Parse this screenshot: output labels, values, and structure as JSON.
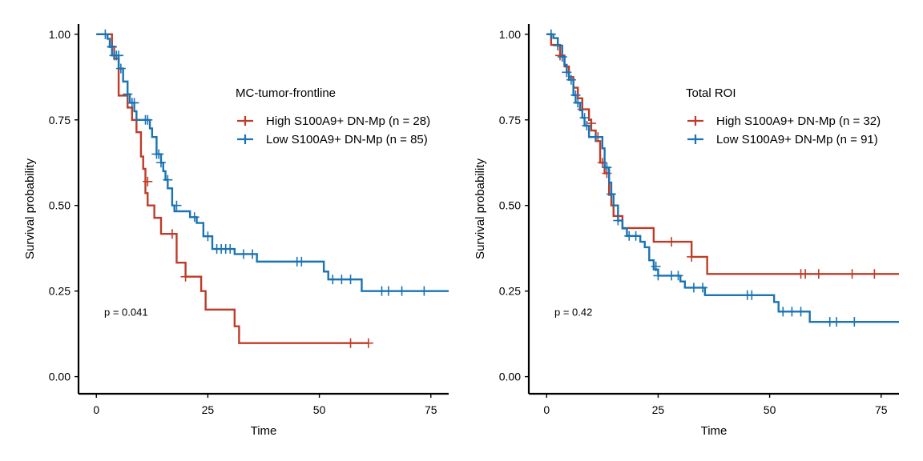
{
  "chart_data": [
    {
      "type": "line",
      "subtype": "kaplan-meier",
      "title": "",
      "legend_title": "MC-tumor-frontline",
      "legend_position": "top-right",
      "xlabel": "Time",
      "ylabel": "Survival probability",
      "xlim": [
        -4,
        79
      ],
      "ylim": [
        -0.05,
        1.03
      ],
      "xticks": [
        0,
        25,
        50,
        75
      ],
      "yticks": [
        0.0,
        0.25,
        0.5,
        0.75,
        1.0
      ],
      "xtick_labels": [
        "0",
        "25",
        "50",
        "75"
      ],
      "ytick_labels": [
        "0.00",
        "0.25",
        "0.50",
        "0.75",
        "1.00"
      ],
      "grid": false,
      "annotation": "p = 0.041",
      "series": [
        {
          "name": "High S100A9+ DN-Mp (n = 28)",
          "color": "#bf3b28",
          "steps": [
            [
              0,
              1.0
            ],
            [
              3.5,
              0.964
            ],
            [
              4,
              0.929
            ],
            [
              5,
              0.821
            ],
            [
              7,
              0.786
            ],
            [
              8,
              0.75
            ],
            [
              9,
              0.714
            ],
            [
              10,
              0.643
            ],
            [
              10.5,
              0.607
            ],
            [
              11,
              0.536
            ],
            [
              11.5,
              0.5
            ],
            [
              13,
              0.464
            ],
            [
              14.5,
              0.417
            ],
            [
              18,
              0.333
            ],
            [
              20,
              0.292
            ],
            [
              23.5,
              0.25
            ],
            [
              24.5,
              0.196
            ],
            [
              31,
              0.147
            ],
            [
              32,
              0.098
            ],
            [
              61,
              0.098
            ]
          ],
          "censors": [
            [
              3.5,
              0.964
            ],
            [
              11.5,
              0.57
            ],
            [
              17,
              0.417
            ],
            [
              20,
              0.292
            ],
            [
              57,
              0.098
            ],
            [
              61,
              0.098
            ]
          ]
        },
        {
          "name": "Low S100A9+ DN-Mp (n = 85)",
          "color": "#1a73b3",
          "steps": [
            [
              0,
              1.0
            ],
            [
              2.5,
              0.987
            ],
            [
              3,
              0.963
            ],
            [
              3.5,
              0.938
            ],
            [
              5,
              0.9
            ],
            [
              6,
              0.862
            ],
            [
              7,
              0.825
            ],
            [
              7.5,
              0.8
            ],
            [
              8.5,
              0.775
            ],
            [
              9,
              0.75
            ],
            [
              12,
              0.725
            ],
            [
              12.5,
              0.7
            ],
            [
              13.5,
              0.65
            ],
            [
              14.5,
              0.625
            ],
            [
              15,
              0.6
            ],
            [
              15.5,
              0.575
            ],
            [
              16,
              0.55
            ],
            [
              17,
              0.5
            ],
            [
              17.5,
              0.483
            ],
            [
              21,
              0.466
            ],
            [
              22.5,
              0.449
            ],
            [
              24,
              0.41
            ],
            [
              26,
              0.373
            ],
            [
              30,
              0.373
            ],
            [
              31,
              0.358
            ],
            [
              35,
              0.358
            ],
            [
              36,
              0.336
            ],
            [
              50,
              0.336
            ],
            [
              51,
              0.307
            ],
            [
              52,
              0.284
            ],
            [
              59,
              0.284
            ],
            [
              59.5,
              0.25
            ],
            [
              79,
              0.25
            ]
          ],
          "censors": [
            [
              2,
              1.0
            ],
            [
              3.5,
              0.963
            ],
            [
              4,
              0.938
            ],
            [
              4.5,
              0.938
            ],
            [
              5,
              0.938
            ],
            [
              5.5,
              0.9
            ],
            [
              7,
              0.825
            ],
            [
              8,
              0.8
            ],
            [
              8.5,
              0.8
            ],
            [
              11,
              0.75
            ],
            [
              11.5,
              0.75
            ],
            [
              13.5,
              0.65
            ],
            [
              14,
              0.65
            ],
            [
              14.5,
              0.625
            ],
            [
              16,
              0.575
            ],
            [
              18,
              0.5
            ],
            [
              22,
              0.466
            ],
            [
              25,
              0.41
            ],
            [
              27,
              0.373
            ],
            [
              28,
              0.373
            ],
            [
              29,
              0.373
            ],
            [
              30,
              0.373
            ],
            [
              33,
              0.358
            ],
            [
              35,
              0.358
            ],
            [
              45,
              0.336
            ],
            [
              46,
              0.336
            ],
            [
              53,
              0.284
            ],
            [
              55,
              0.284
            ],
            [
              57,
              0.284
            ],
            [
              64,
              0.25
            ],
            [
              65.5,
              0.25
            ],
            [
              68.5,
              0.25
            ],
            [
              73.5,
              0.25
            ]
          ]
        }
      ]
    },
    {
      "type": "line",
      "subtype": "kaplan-meier",
      "title": "",
      "legend_title": "Total ROI",
      "legend_position": "top-right",
      "xlabel": "Time",
      "ylabel": "Survival probability",
      "xlim": [
        -4,
        79
      ],
      "ylim": [
        -0.05,
        1.03
      ],
      "xticks": [
        0,
        25,
        50,
        75
      ],
      "yticks": [
        0.0,
        0.25,
        0.5,
        0.75,
        1.0
      ],
      "xtick_labels": [
        "0",
        "25",
        "50",
        "75"
      ],
      "ytick_labels": [
        "0.00",
        "0.25",
        "0.50",
        "0.75",
        "1.00"
      ],
      "grid": false,
      "annotation": "p = 0.42",
      "series": [
        {
          "name": "High S100A9+ DN-Mp (n = 32)",
          "color": "#bf3b28",
          "steps": [
            [
              0,
              1.0
            ],
            [
              1,
              0.969
            ],
            [
              3,
              0.938
            ],
            [
              4,
              0.906
            ],
            [
              5,
              0.875
            ],
            [
              6,
              0.844
            ],
            [
              7,
              0.813
            ],
            [
              8,
              0.781
            ],
            [
              9.5,
              0.75
            ],
            [
              10,
              0.719
            ],
            [
              11,
              0.688
            ],
            [
              12,
              0.625
            ],
            [
              13,
              0.594
            ],
            [
              14,
              0.531
            ],
            [
              14.5,
              0.5
            ],
            [
              15,
              0.469
            ],
            [
              17,
              0.434
            ],
            [
              23,
              0.434
            ],
            [
              24,
              0.394
            ],
            [
              32,
              0.394
            ],
            [
              32.5,
              0.35
            ],
            [
              35,
              0.35
            ],
            [
              36,
              0.3
            ],
            [
              79,
              0.3
            ]
          ],
          "censors": [
            [
              3,
              0.938
            ],
            [
              8,
              0.781
            ],
            [
              10,
              0.74
            ],
            [
              11.5,
              0.7
            ],
            [
              12.5,
              0.625
            ],
            [
              13.5,
              0.594
            ],
            [
              28,
              0.394
            ],
            [
              32.5,
              0.35
            ],
            [
              57,
              0.3
            ],
            [
              58,
              0.3
            ],
            [
              61,
              0.3
            ],
            [
              68.5,
              0.3
            ],
            [
              73.5,
              0.3
            ]
          ]
        },
        {
          "name": "Low S100A9+ DN-Mp (n = 91)",
          "color": "#1a73b3",
          "steps": [
            [
              0,
              1.0
            ],
            [
              1.5,
              0.989
            ],
            [
              2.5,
              0.967
            ],
            [
              3.5,
              0.934
            ],
            [
              4,
              0.911
            ],
            [
              4.5,
              0.889
            ],
            [
              5,
              0.867
            ],
            [
              6,
              0.822
            ],
            [
              6.5,
              0.8
            ],
            [
              7.5,
              0.778
            ],
            [
              8,
              0.756
            ],
            [
              8.5,
              0.733
            ],
            [
              9.5,
              0.7
            ],
            [
              12,
              0.7
            ],
            [
              12.5,
              0.667
            ],
            [
              13,
              0.611
            ],
            [
              14,
              0.567
            ],
            [
              14.5,
              0.533
            ],
            [
              15,
              0.5
            ],
            [
              16,
              0.456
            ],
            [
              17,
              0.433
            ],
            [
              18,
              0.411
            ],
            [
              21,
              0.394
            ],
            [
              22,
              0.378
            ],
            [
              23,
              0.34
            ],
            [
              24,
              0.313
            ],
            [
              25,
              0.295
            ],
            [
              30,
              0.278
            ],
            [
              31,
              0.26
            ],
            [
              35,
              0.26
            ],
            [
              35.5,
              0.238
            ],
            [
              50,
              0.238
            ],
            [
              51,
              0.218
            ],
            [
              52,
              0.19
            ],
            [
              58,
              0.19
            ],
            [
              59,
              0.16
            ],
            [
              79,
              0.16
            ]
          ],
          "censors": [
            [
              1,
              1.0
            ],
            [
              2.5,
              0.967
            ],
            [
              3.5,
              0.934
            ],
            [
              4.5,
              0.889
            ],
            [
              5.5,
              0.867
            ],
            [
              6.5,
              0.822
            ],
            [
              7,
              0.8
            ],
            [
              8.5,
              0.756
            ],
            [
              9,
              0.733
            ],
            [
              11,
              0.7
            ],
            [
              13.5,
              0.611
            ],
            [
              14.5,
              0.533
            ],
            [
              16,
              0.456
            ],
            [
              18.5,
              0.411
            ],
            [
              20,
              0.411
            ],
            [
              24.5,
              0.322
            ],
            [
              25,
              0.295
            ],
            [
              28,
              0.295
            ],
            [
              29.5,
              0.295
            ],
            [
              33,
              0.26
            ],
            [
              35,
              0.26
            ],
            [
              45,
              0.238
            ],
            [
              46,
              0.238
            ],
            [
              53,
              0.19
            ],
            [
              55,
              0.19
            ],
            [
              57,
              0.19
            ],
            [
              63.5,
              0.16
            ],
            [
              65,
              0.16
            ],
            [
              69,
              0.16
            ]
          ]
        }
      ]
    }
  ]
}
